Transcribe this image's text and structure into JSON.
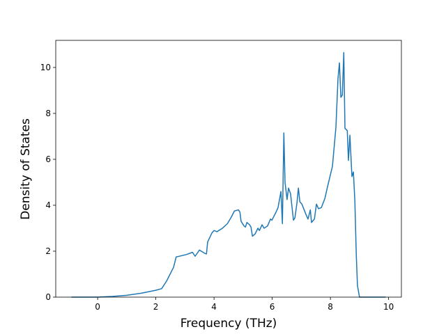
{
  "chart_data": {
    "type": "line",
    "x_label": "Frequency (THz)",
    "y_label": "Density of States",
    "x": [
      -0.9,
      -0.5,
      0,
      0.5,
      1,
      1.5,
      2,
      2.2,
      2.37,
      2.61,
      2.7,
      3.04,
      3.26,
      3.35,
      3.5,
      3.69,
      3.74,
      3.78,
      3.93,
      4.0,
      4.1,
      4.29,
      4.46,
      4.6,
      4.7,
      4.84,
      4.89,
      4.93,
      5.03,
      5.08,
      5.13,
      5.22,
      5.27,
      5.32,
      5.41,
      5.51,
      5.56,
      5.65,
      5.72,
      5.84,
      5.94,
      5.99,
      6.13,
      6.2,
      6.3,
      6.35,
      6.4,
      6.44,
      6.51,
      6.56,
      6.63,
      6.73,
      6.78,
      6.85,
      6.9,
      6.95,
      7.02,
      7.16,
      7.23,
      7.31,
      7.35,
      7.45,
      7.52,
      7.59,
      7.69,
      7.81,
      7.9,
      8.07,
      8.19,
      8.26,
      8.31,
      8.36,
      8.41,
      8.46,
      8.5,
      8.58,
      8.62,
      8.67,
      8.74,
      8.79,
      8.84,
      8.89,
      8.93,
      9.0,
      9.9
    ],
    "series": [
      {
        "color": "#1f77b4",
        "values": [
          0,
          0,
          0,
          0.03,
          0.08,
          0.17,
          0.3,
          0.37,
          0.7,
          1.3,
          1.75,
          1.85,
          1.95,
          1.78,
          2.05,
          1.9,
          1.88,
          2.4,
          2.8,
          2.9,
          2.85,
          3.0,
          3.2,
          3.5,
          3.75,
          3.8,
          3.7,
          3.3,
          3.1,
          3.05,
          3.25,
          3.15,
          3.05,
          2.65,
          2.75,
          3.0,
          2.9,
          3.15,
          3.0,
          3.1,
          3.4,
          3.35,
          3.7,
          3.9,
          4.6,
          3.2,
          7.15,
          5.0,
          4.25,
          4.75,
          4.5,
          3.35,
          3.45,
          4.1,
          4.75,
          4.15,
          4.05,
          3.6,
          3.4,
          3.8,
          3.25,
          3.4,
          4.05,
          3.85,
          3.9,
          4.3,
          4.8,
          5.7,
          7.4,
          9.5,
          10.2,
          8.7,
          8.8,
          10.65,
          7.35,
          7.25,
          5.95,
          7.05,
          5.25,
          5.45,
          4.2,
          1.8,
          0.5,
          0,
          0
        ]
      }
    ],
    "xlim": [
      -1.44,
      10.44
    ],
    "ylim": [
      0,
      11.18
    ],
    "xticks": [
      0,
      2,
      4,
      6,
      8,
      10
    ],
    "yticks": [
      0,
      2,
      4,
      6,
      8,
      10
    ]
  }
}
